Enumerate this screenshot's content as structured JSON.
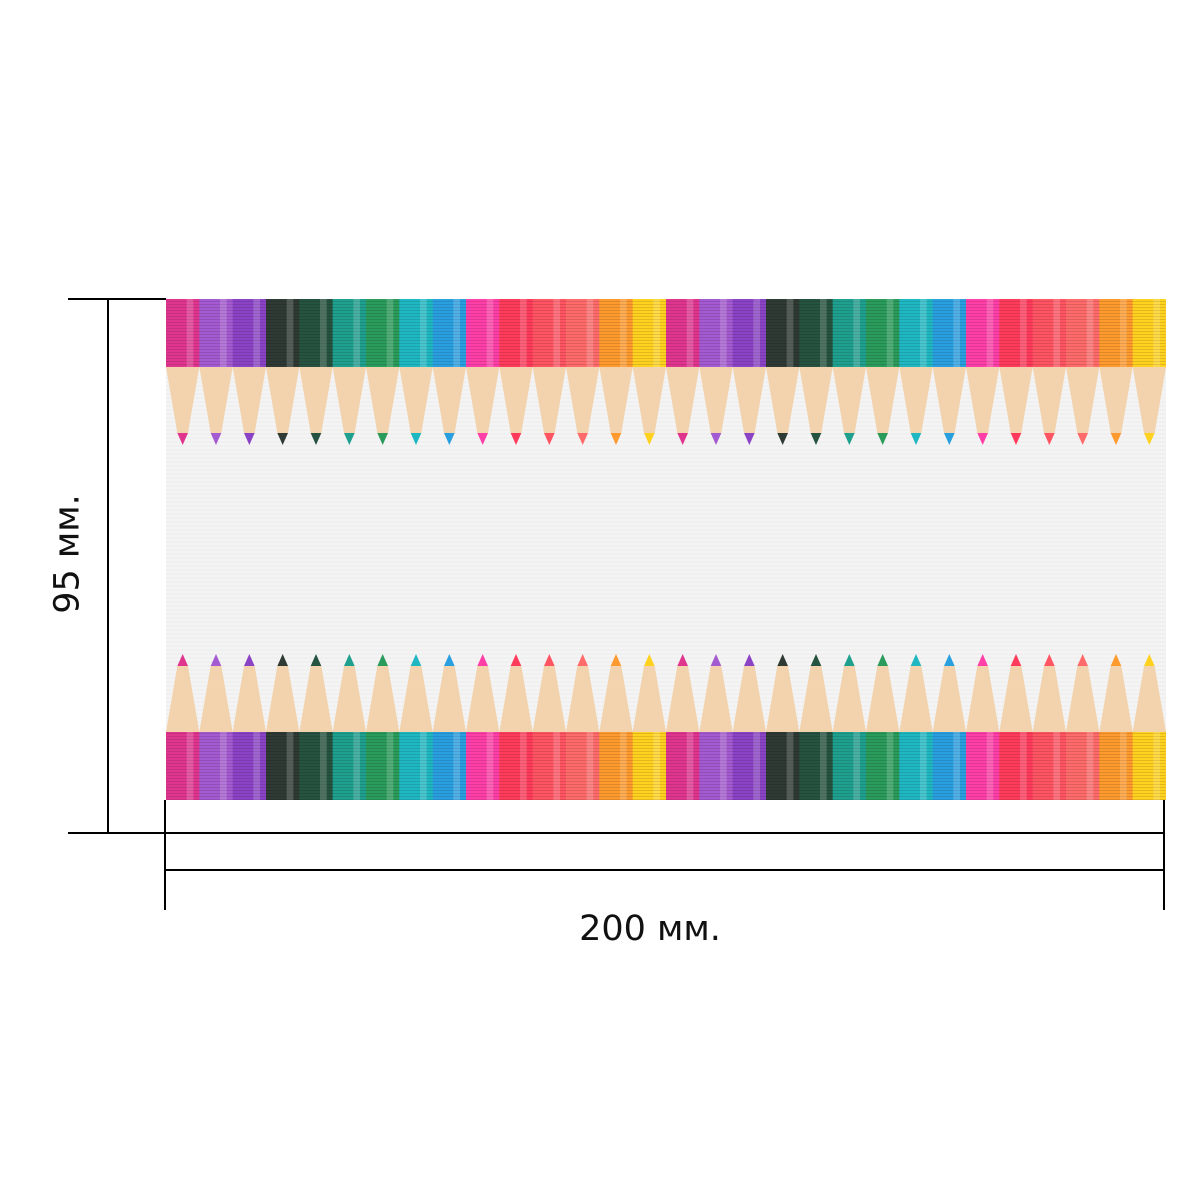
{
  "dimensions": {
    "width_label": "200 мм.",
    "height_label": "95 мм."
  },
  "banner": {
    "background": "#f3f3f3",
    "wood_color": "#f2d3ad",
    "pencil_colors": [
      "#e0358f",
      "#a45ad0",
      "#8b43c6",
      "#2f3a34",
      "#265240",
      "#1f9f8e",
      "#2a9b5a",
      "#1fb8c2",
      "#2a9fe0",
      "#ff3fa8",
      "#ff3b5c",
      "#ff5462",
      "#ff6a6a",
      "#ff9a2e",
      "#ffd21f"
    ],
    "repeats": 2
  }
}
